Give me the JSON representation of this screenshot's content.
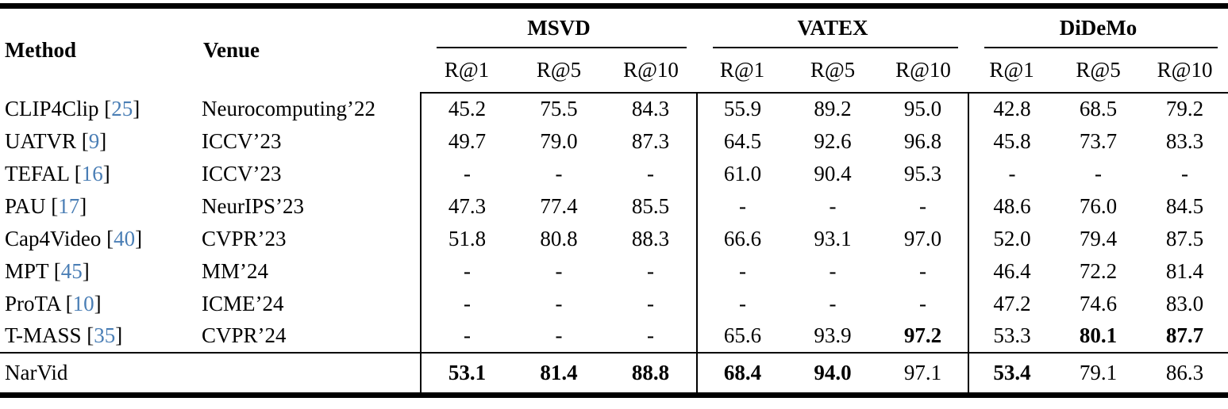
{
  "colors": {
    "text": "#000000",
    "cite_blue": "#4a7eb5",
    "rule": "#000000",
    "background": "#ffffff"
  },
  "table": {
    "header": {
      "method_label": "Method",
      "venue_label": "Venue",
      "groups": [
        "MSVD",
        "VATEX",
        "DiDeMo"
      ],
      "metrics": [
        "R@1",
        "R@5",
        "R@10"
      ]
    },
    "rows": [
      {
        "method": "CLIP4Clip",
        "cite": "25",
        "venue": "Neurocomputing’22",
        "cells": [
          "45.2",
          "75.5",
          "84.3",
          "55.9",
          "89.2",
          "95.0",
          "42.8",
          "68.5",
          "79.2"
        ]
      },
      {
        "method": "UATVR",
        "cite": "9",
        "venue": "ICCV’23",
        "cells": [
          "49.7",
          "79.0",
          "87.3",
          "64.5",
          "92.6",
          "96.8",
          "45.8",
          "73.7",
          "83.3"
        ]
      },
      {
        "method": "TEFAL",
        "cite": "16",
        "venue": "ICCV’23",
        "cells": [
          "-",
          "-",
          "-",
          "61.0",
          "90.4",
          "95.3",
          "-",
          "-",
          "-"
        ]
      },
      {
        "method": "PAU",
        "cite": "17",
        "venue": "NeurIPS’23",
        "cells": [
          "47.3",
          "77.4",
          "85.5",
          "-",
          "-",
          "-",
          "48.6",
          "76.0",
          "84.5"
        ]
      },
      {
        "method": "Cap4Video",
        "cite": "40",
        "venue": "CVPR’23",
        "cells": [
          "51.8",
          "80.8",
          "88.3",
          "66.6",
          "93.1",
          "97.0",
          "52.0",
          "79.4",
          "87.5"
        ]
      },
      {
        "method": "MPT",
        "cite": "45",
        "venue": "MM’24",
        "cells": [
          "-",
          "-",
          "-",
          "-",
          "-",
          "-",
          "46.4",
          "72.2",
          "81.4"
        ]
      },
      {
        "method": "ProTA",
        "cite": "10",
        "venue": "ICME’24",
        "cells": [
          "-",
          "-",
          "-",
          "-",
          "-",
          "-",
          "47.2",
          "74.6",
          "83.0"
        ]
      },
      {
        "method": "T-MASS",
        "cite": "35",
        "venue": "CVPR’24",
        "cells": [
          "-",
          "-",
          "-",
          "65.6",
          "93.9",
          "97.2",
          "53.3",
          "80.1",
          "87.7"
        ],
        "bold": [
          false,
          false,
          false,
          false,
          false,
          true,
          false,
          true,
          true
        ]
      }
    ],
    "final_row": {
      "method": "NarVid",
      "cite": null,
      "venue": "",
      "cells": [
        "53.1",
        "81.4",
        "88.8",
        "68.4",
        "94.0",
        "97.1",
        "53.4",
        "79.1",
        "86.3"
      ],
      "bold": [
        true,
        true,
        true,
        true,
        true,
        false,
        true,
        false,
        false
      ]
    }
  }
}
